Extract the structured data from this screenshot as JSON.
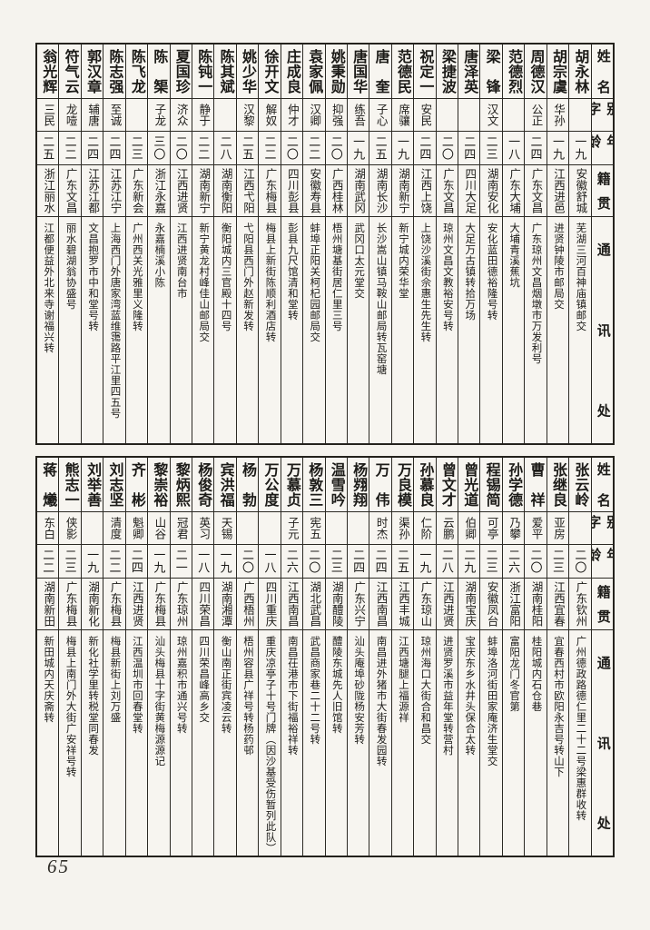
{
  "page_number": "65",
  "colors": {
    "ink": "#1c1b18",
    "paper": "#f5f3ee",
    "grid": "#2c2a24"
  },
  "column_headers": {
    "name": "姓名",
    "courtesy_name": "别字",
    "age": "年龄",
    "native_place": "籍贯",
    "contact_address": "通讯处"
  },
  "tables": [
    {
      "entries": [
        {
          "name": "胡永林",
          "courtesy": "",
          "age": "一九",
          "origin": "安徽舒城",
          "contact": "芜湖三河百神庙镇邮交"
        },
        {
          "name": "胡宗虞",
          "courtesy": "华孙",
          "age": "一九",
          "origin": "江西进邑",
          "contact": "进贤钟陵市邮局交"
        },
        {
          "name": "周德汉",
          "courtesy": "公正",
          "age": "二四",
          "origin": "广东文昌",
          "contact": "广东琼州文昌烟墩市万发利号"
        },
        {
          "name": "范德烈",
          "courtesy": "",
          "age": "一八",
          "origin": "广东大埔",
          "contact": "大埔青溪蕉坑"
        },
        {
          "name": "梁锋",
          "courtesy": "汉文",
          "age": "二三",
          "origin": "湖南安化",
          "contact": "安化蓝田德裕隆号转"
        },
        {
          "name": "唐泽英",
          "courtesy": "",
          "age": "二四",
          "origin": "四川大足",
          "contact": "大足万古镇转拾万场"
        },
        {
          "name": "梁捷波",
          "courtesy": "",
          "age": "二〇",
          "origin": "广东文昌",
          "contact": "琼州文昌文教裕安号转"
        },
        {
          "name": "祝定一",
          "courtesy": "安民",
          "age": "二四",
          "origin": "江西上饶",
          "contact": "上饶沙溪街佘惠生先生转"
        },
        {
          "name": "范德民",
          "courtesy": "席骧",
          "age": "一九",
          "origin": "湖南新宁",
          "contact": "新宁城内荣华堂"
        },
        {
          "name": "唐奎",
          "courtesy": "子心",
          "age": "二五",
          "origin": "湖南长沙",
          "contact": "长沙嵩山镇马鞍山邮局转瓦窑塘"
        },
        {
          "name": "唐国华",
          "courtesy": "练吾",
          "age": "一九",
          "origin": "湖南武冈",
          "contact": "武冈口太元堂交"
        },
        {
          "name": "姚秉勋",
          "courtesy": "抑强",
          "age": "二〇",
          "origin": "广西桂林",
          "contact": "梧州塘基街居仁里三号"
        },
        {
          "name": "袁家佩",
          "courtesy": "汉卿",
          "age": "二二",
          "origin": "安徽寿县",
          "contact": "蚌埠正阳关柯杞园邮局交"
        },
        {
          "name": "庄成良",
          "courtesy": "仲才",
          "age": "二〇",
          "origin": "四川彭县",
          "contact": "彭县九尺馆清和堂转"
        },
        {
          "name": "徐开文",
          "courtesy": "解奴",
          "age": "二二",
          "origin": "广东梅县",
          "contact": "梅县上新街陈顺利酒店转"
        },
        {
          "name": "姚少华",
          "courtesy": "汉黎",
          "age": "二五",
          "origin": "江西弋阳",
          "contact": "弋阳县西门外赵新发转"
        },
        {
          "name": "陈其斌",
          "courtesy": "",
          "age": "二八",
          "origin": "湖南衡阳",
          "contact": "衡阳城内三官殿十四号"
        },
        {
          "name": "陈钝一",
          "courtesy": "静于",
          "age": "二二",
          "origin": "湖南新宁",
          "contact": "新宁黄龙村峰佳山邮局交"
        },
        {
          "name": "夏国珍",
          "courtesy": "济众",
          "age": "二〇",
          "origin": "江西进贤",
          "contact": "江西进贤南台市"
        },
        {
          "name": "陈榘",
          "courtesy": "子龙",
          "age": "三〇",
          "origin": "浙江永嘉",
          "contact": "永嘉楠溪小陈"
        },
        {
          "name": "陈飞龙",
          "courtesy": "",
          "age": "二三",
          "origin": "广东新会",
          "contact": "广州西关光雅里义隆转"
        },
        {
          "name": "陈志强",
          "courtesy": "至诚",
          "age": "二四",
          "origin": "江苏江宁",
          "contact": "上海西门外唐家湾蓝维霭路平江里四五号"
        },
        {
          "name": "郭汉章",
          "courtesy": "辅唐",
          "age": "二四",
          "origin": "江苏江都",
          "contact": "文昌抱罗市中和堂号转"
        },
        {
          "name": "符气云",
          "courtesy": "龙噎",
          "age": "二二",
          "origin": "广东文昌",
          "contact": "丽水碧湖翁协盛号"
        },
        {
          "name": "翁光辉",
          "courtesy": "三民",
          "age": "二五",
          "origin": "浙江丽水",
          "contact": "江都便益外北来寺谢福兴转"
        }
      ]
    },
    {
      "entries": [
        {
          "name": "张云岭",
          "courtesy": "",
          "age": "二〇",
          "origin": "广东钦州",
          "contact": "广州德政路德仁里二十二号梁惠群收转"
        },
        {
          "name": "张继良",
          "courtesy": "亚房",
          "age": "二三",
          "origin": "江西宜春",
          "contact": "宜春西村市欧阳永吉号转山下"
        },
        {
          "name": "曹祥",
          "courtesy": "爱平",
          "age": "二〇",
          "origin": "湖南桂阳",
          "contact": "桂阳城内石仓巷"
        },
        {
          "name": "孙学德",
          "courtesy": "乃攀",
          "age": "二六",
          "origin": "浙江富阳",
          "contact": "富阳龙门冬官第"
        },
        {
          "name": "程锡简",
          "courtesy": "可亭",
          "age": "二三",
          "origin": "安徽凤台",
          "contact": "蚌埠洛河街田家庵济生堂交"
        },
        {
          "name": "曾光道",
          "courtesy": "伯卿",
          "age": "二九",
          "origin": "湖南宝庆",
          "contact": "宝庆东乡水井头保合太转"
        },
        {
          "name": "曾文才",
          "courtesy": "云鹏",
          "age": "二八",
          "origin": "江西进贤",
          "contact": "进贤罗溪市益年堂转营村"
        },
        {
          "name": "孙慕良",
          "courtesy": "仁阶",
          "age": "一九",
          "origin": "广东琼山",
          "contact": "琼州海口大街合和昌交"
        },
        {
          "name": "万良模",
          "courtesy": "渠孙",
          "age": "二五",
          "origin": "江西丰城",
          "contact": "江西塘腿上福源祥"
        },
        {
          "name": "万伟",
          "courtesy": "时杰",
          "age": "二四",
          "origin": "江西南昌",
          "contact": "南昌进外猪市大街春发园转"
        },
        {
          "name": "杨翙翔",
          "courtesy": "",
          "age": "二四",
          "origin": "广东兴宁",
          "contact": "汕头庵埠砂陇杨安芳转"
        },
        {
          "name": "温雪吟",
          "courtesy": "",
          "age": "二三",
          "origin": "湖南醴陵",
          "contact": "醴陵东城先人旧馆转"
        },
        {
          "name": "杨敦三",
          "courtesy": "宪五",
          "age": "二〇",
          "origin": "湖北武昌",
          "contact": "武昌商家巷二十二号转"
        },
        {
          "name": "万慕贞",
          "courtesy": "子元",
          "age": "二六",
          "origin": "江西南昌",
          "contact": "南昌茌港市下街福裕祥转"
        },
        {
          "name": "万公度",
          "courtesy": "",
          "age": "一八",
          "origin": "四川重庆",
          "contact": "重庆凉亭子十号门牌（因沙基受伤暂列此队）"
        },
        {
          "name": "杨勃",
          "courtesy": "",
          "age": "二〇",
          "origin": "广西梧州",
          "contact": "梧州容县广祥号转杨药邨"
        },
        {
          "name": "宾洪福",
          "courtesy": "天锡",
          "age": "一九",
          "origin": "湖南湘潭",
          "contact": "衡山南正街宾凌云转"
        },
        {
          "name": "杨俊奇",
          "courtesy": "英习",
          "age": "一八",
          "origin": "四川荣昌",
          "contact": "四川荣昌峰高乡交"
        },
        {
          "name": "黎炳熙",
          "courtesy": "冠君",
          "age": "二一",
          "origin": "广东琼州",
          "contact": "琼州嘉积市通兴号转"
        },
        {
          "name": "黎崇裕",
          "courtesy": "山谷",
          "age": "一九",
          "origin": "广东梅县",
          "contact": "汕头梅县十字街黄梅源源记"
        },
        {
          "name": "齐彬",
          "courtesy": "魁卿",
          "age": "二四",
          "origin": "江西进贤",
          "contact": "江西温圳市回春堂转"
        },
        {
          "name": "刘志坚",
          "courtesy": "清度",
          "age": "二二",
          "origin": "广东梅县",
          "contact": "梅县新街上刘万盛"
        },
        {
          "name": "刘举善",
          "courtesy": "",
          "age": "一九",
          "origin": "湖南新化",
          "contact": "新化社学里转税堂同春发"
        },
        {
          "name": "熊志一",
          "courtesy": "侠影",
          "age": "二三",
          "origin": "广东梅县",
          "contact": "梅县上南门外大街广安祥号转"
        },
        {
          "name": "蒋爔",
          "courtesy": "东白",
          "age": "二二",
          "origin": "湖南新田",
          "contact": "新田城内天庆斋转"
        }
      ]
    }
  ]
}
